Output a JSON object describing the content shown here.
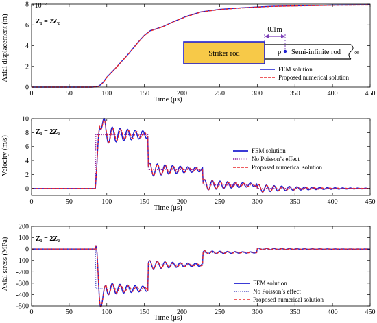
{
  "chart_data": [
    {
      "type": "line",
      "panel_label": "Z₁ = 2Z₂",
      "xlabel": "Time (μs)",
      "ylabel": "Axial displacement (m)",
      "y_multiplier": "×10⁻⁴",
      "xlim": [
        0,
        450
      ],
      "ylim": [
        0,
        8
      ],
      "xticks": [
        0,
        50,
        100,
        150,
        200,
        250,
        300,
        350,
        400,
        450
      ],
      "yticks": [
        0,
        2,
        4,
        6,
        8
      ],
      "legend": "bottom-right",
      "colors": {
        "fem": "#1f1fd1",
        "proposed": "#e8262b"
      },
      "series": [
        {
          "name": "FEM solution",
          "style": "solid",
          "color": "#1f1fd1",
          "points": [
            [
              0,
              0
            ],
            [
              80,
              0
            ],
            [
              86,
              0.03
            ],
            [
              90,
              0.12
            ],
            [
              95,
              0.45
            ],
            [
              100,
              0.95
            ],
            [
              110,
              1.7
            ],
            [
              120,
              2.5
            ],
            [
              130,
              3.3
            ],
            [
              140,
              4.2
            ],
            [
              150,
              5.0
            ],
            [
              158,
              5.45
            ],
            [
              165,
              5.6
            ],
            [
              175,
              5.85
            ],
            [
              190,
              6.35
            ],
            [
              205,
              6.8
            ],
            [
              225,
              7.25
            ],
            [
              250,
              7.5
            ],
            [
              280,
              7.65
            ],
            [
              320,
              7.8
            ],
            [
              360,
              7.85
            ],
            [
              400,
              7.9
            ],
            [
              450,
              7.92
            ]
          ]
        },
        {
          "name": "Proposed numerical solution",
          "style": "dashed",
          "color": "#e8262b",
          "points": [
            [
              0,
              0
            ],
            [
              80,
              0
            ],
            [
              86,
              0.02
            ],
            [
              90,
              0.1
            ],
            [
              95,
              0.42
            ],
            [
              100,
              0.92
            ],
            [
              110,
              1.68
            ],
            [
              120,
              2.48
            ],
            [
              130,
              3.28
            ],
            [
              140,
              4.18
            ],
            [
              150,
              4.98
            ],
            [
              158,
              5.42
            ],
            [
              165,
              5.58
            ],
            [
              175,
              5.83
            ],
            [
              190,
              6.33
            ],
            [
              205,
              6.78
            ],
            [
              225,
              7.23
            ],
            [
              250,
              7.48
            ],
            [
              280,
              7.63
            ],
            [
              320,
              7.78
            ],
            [
              360,
              7.84
            ],
            [
              400,
              7.89
            ],
            [
              450,
              7.91
            ]
          ]
        }
      ],
      "inset": {
        "striker_label": "Striker rod",
        "semi_infinite_label": "Semi-infinite rod",
        "distance_label": "0.1m",
        "point_label": "p",
        "infinity_symbol": "∞",
        "striker_color": "#f7c948"
      }
    },
    {
      "type": "line",
      "panel_label": "Z₁ = 2Z₂",
      "xlabel": "Time (μs)",
      "ylabel": "Velocity (m/s)",
      "xlim": [
        0,
        450
      ],
      "ylim": [
        -1,
        10
      ],
      "xticks": [
        0,
        50,
        100,
        150,
        200,
        250,
        300,
        350,
        400,
        450
      ],
      "yticks": [
        0,
        2,
        4,
        6,
        8,
        10
      ],
      "legend": "right",
      "series": [
        {
          "name": "FEM solution",
          "style": "solid",
          "color": "#1f1fd1",
          "model": "fem"
        },
        {
          "name": "No Poisson’s effect",
          "style": "dotted",
          "color": "#8b1a9c",
          "model": "step"
        },
        {
          "name": "Proposed numerical solution",
          "style": "dashed",
          "color": "#e8262b",
          "model": "proposed"
        }
      ],
      "params": {
        "t0": 85,
        "levels": [
          0,
          7.7,
          2.7,
          0.5,
          0
        ],
        "steps": [
          85,
          155,
          228,
          300
        ],
        "ring_amp": [
          0,
          1.6,
          1.0,
          0.8,
          0.6
        ]
      }
    },
    {
      "type": "line",
      "panel_label": "Z₁ = 2Z₂",
      "xlabel": "Time (μs)",
      "ylabel": "Axial stress (MPa)",
      "xlim": [
        0,
        450
      ],
      "ylim": [
        -500,
        200
      ],
      "xticks": [
        0,
        50,
        100,
        150,
        200,
        250,
        300,
        350,
        400,
        450
      ],
      "yticks": [
        -500,
        -400,
        -300,
        -200,
        -100,
        0,
        100,
        200
      ],
      "legend": "bottom-right",
      "series": [
        {
          "name": "FEM solution",
          "style": "solid",
          "color": "#1f1fd1",
          "model": "fem"
        },
        {
          "name": "No Poisson’s effect",
          "style": "dotted",
          "color": "#5252c2",
          "model": "step"
        },
        {
          "name": "Proposed numerical solution",
          "style": "dashed",
          "color": "#e8262b",
          "model": "proposed"
        }
      ],
      "params": {
        "t0": 85,
        "levels": [
          0,
          -350,
          -140,
          -30,
          0
        ],
        "steps": [
          85,
          155,
          228,
          300
        ],
        "ring_amp": [
          0,
          70,
          40,
          15,
          8
        ]
      }
    }
  ]
}
